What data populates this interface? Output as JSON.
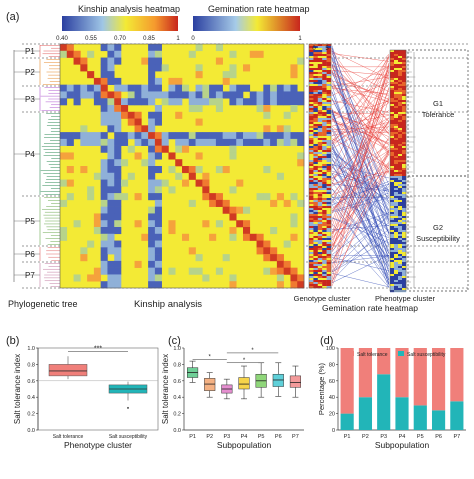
{
  "panel_labels": {
    "a": "(a)",
    "b": "(b)",
    "c": "(c)",
    "d": "(d)"
  },
  "scale_bars": {
    "kinship": {
      "title": "Kinship analysis  heatmap",
      "ticks": [
        "0.40",
        "0.55",
        "0.70",
        "0.85",
        "1"
      ]
    },
    "germination": {
      "title": "Gemination rate  heatmap",
      "ticks": [
        "0",
        "1"
      ]
    }
  },
  "cluster_labels": [
    "P1",
    "P2",
    "P3",
    "P4",
    "P5",
    "P6",
    "P7"
  ],
  "axis_captions": {
    "phylo_tree": "Phylogenetic tree",
    "kinship": "Kinship  analysis",
    "genotype_cluster": "Genotype cluster",
    "germination_heatmap": "Gemination rate  heatmap",
    "phenotype_cluster": "Phenotype cluster"
  },
  "genotype_ticks": [
    "0",
    "5"
  ],
  "groups": {
    "g1": {
      "id": "G1",
      "name": "Tolerance"
    },
    "g2": {
      "id": "G2",
      "name": "Susceptibility"
    }
  },
  "colors": {
    "tolerance": "#f07f7a",
    "susceptibility": "#22b5b8",
    "heat_low": "#2b3fa0",
    "heat_mid": "#f3ea35",
    "heat_high": "#c8261d"
  },
  "chart_data": [
    {
      "panel": "b",
      "type": "box",
      "xlabel": "Phenotype cluster",
      "ylabel": "Salt tolerance index",
      "ylim": [
        0.0,
        1.0
      ],
      "yticks": [
        "0.0",
        "0.2",
        "0.4",
        "0.6",
        "0.8",
        "1.0"
      ],
      "categories": [
        "Salt tolerance",
        "Salt susceptibility"
      ],
      "boxes": [
        {
          "q1": 0.66,
          "median": 0.72,
          "q3": 0.8,
          "low": 0.62,
          "high": 0.9
        },
        {
          "q1": 0.45,
          "median": 0.5,
          "q3": 0.55,
          "low": 0.36,
          "high": 0.59,
          "outliers": [
            0.27
          ]
        }
      ],
      "significance": "***"
    },
    {
      "panel": "c",
      "type": "box",
      "xlabel": "Subpopulation",
      "ylabel": "Salt tolerance index",
      "ylim": [
        0.0,
        1.0
      ],
      "yticks": [
        "0.0",
        "0.2",
        "0.4",
        "0.6",
        "0.8",
        "1.0"
      ],
      "categories": [
        "P1",
        "P2",
        "P3",
        "P4",
        "P5",
        "P6",
        "P7"
      ],
      "boxes": [
        {
          "q1": 0.64,
          "median": 0.7,
          "q3": 0.76,
          "low": 0.58,
          "high": 0.84
        },
        {
          "q1": 0.48,
          "median": 0.56,
          "q3": 0.63,
          "low": 0.4,
          "high": 0.7
        },
        {
          "q1": 0.45,
          "median": 0.5,
          "q3": 0.55,
          "low": 0.38,
          "high": 0.62
        },
        {
          "q1": 0.5,
          "median": 0.56,
          "q3": 0.64,
          "low": 0.38,
          "high": 0.78
        },
        {
          "q1": 0.52,
          "median": 0.6,
          "q3": 0.68,
          "low": 0.4,
          "high": 0.82
        },
        {
          "q1": 0.53,
          "median": 0.61,
          "q3": 0.68,
          "low": 0.41,
          "high": 0.82
        },
        {
          "q1": 0.52,
          "median": 0.58,
          "q3": 0.66,
          "low": 0.4,
          "high": 0.78
        }
      ],
      "box_colors": [
        "#6fcf97",
        "#f4b183",
        "#e58fd0",
        "#f6d44a",
        "#8fd67a",
        "#5fd0d9",
        "#f39a9a"
      ],
      "significance": [
        "*",
        "*",
        "*"
      ]
    },
    {
      "panel": "d",
      "type": "bar",
      "stacked": true,
      "xlabel": "Subpopulation",
      "ylabel": "Percentage (%)",
      "ylim": [
        0,
        100
      ],
      "yticks": [
        "0",
        "20",
        "40",
        "60",
        "80",
        "100"
      ],
      "categories": [
        "P1",
        "P2",
        "P3",
        "P4",
        "P5",
        "P6",
        "P7"
      ],
      "legend": "top-right",
      "series": [
        {
          "name": "Salt susceptibility",
          "values": [
            20,
            40,
            68,
            40,
            30,
            24,
            35
          ]
        },
        {
          "name": "Salt tolerance",
          "values": [
            80,
            60,
            32,
            60,
            70,
            76,
            65
          ]
        }
      ]
    }
  ]
}
